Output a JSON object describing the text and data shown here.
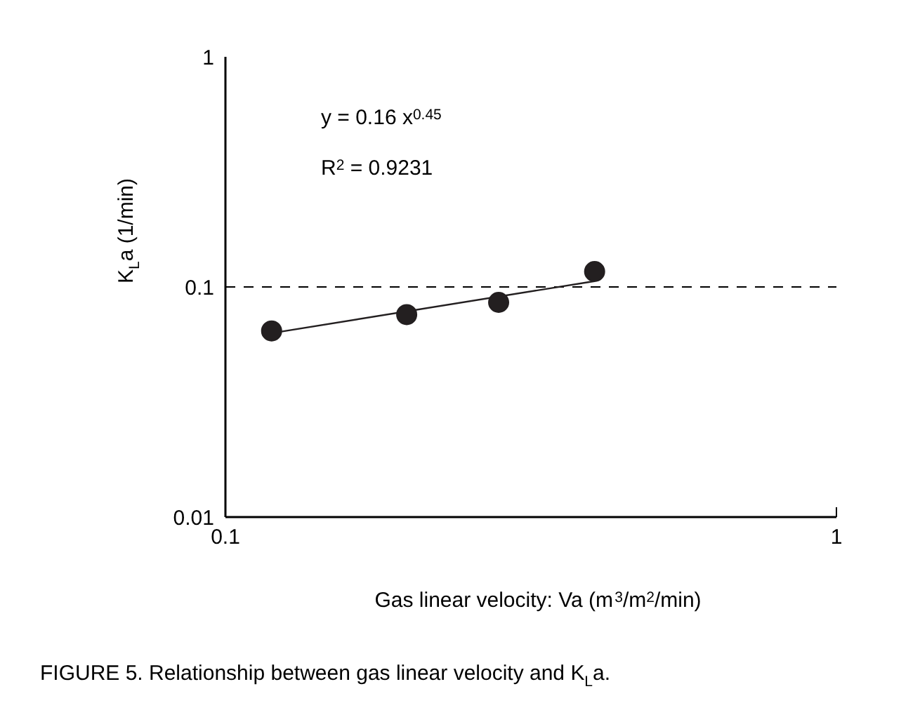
{
  "chart_data": {
    "type": "scatter",
    "title": "FIGURE 5. Relationship between gas linear velocity and K$_{L}$a.",
    "xlabel": "Gas linear velocity: Va (m$^{3}$/m$^{2}$/min)",
    "ylabel": "K$_{L}$a (1/min)",
    "annotations": [
      "y = 0.16 x$^{0.45}$",
      "R$^{2}$ = 0.9231"
    ],
    "log": "xy",
    "xlim": [
      0.1,
      1
    ],
    "xticks": [
      0.1,
      1
    ],
    "ylim": [
      0.01,
      1
    ],
    "yticks": [
      0.01,
      0.1,
      1
    ],
    "grid": "y",
    "series": [
      {
        "type": "scatter",
        "marker": "circle",
        "color": "#231f20",
        "x": [
          0.119,
          0.198,
          0.28,
          0.402
        ],
        "values": [
          0.0644,
          0.0758,
          0.0857,
          0.1167
        ]
      },
      {
        "type": "line",
        "line_style": "solid",
        "color": "#231f20",
        "x": [
          0.119,
          0.402
        ],
        "values": [
          0.063,
          0.106
        ]
      }
    ]
  }
}
